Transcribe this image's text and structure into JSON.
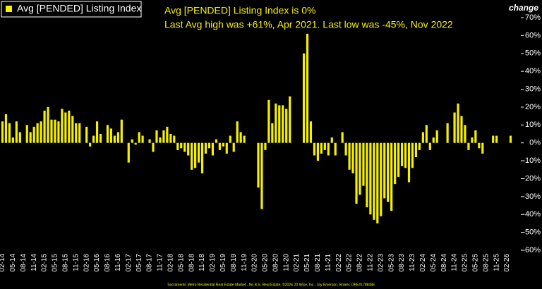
{
  "chart_data": {
    "type": "bar",
    "y_label": "change",
    "annotations": [
      "Avg [PENDED] Listing Index is 0%",
      "Last Avg high was +61%, Apr 2021. Last low was -45%, Nov 2022"
    ],
    "footer": "Sacramento Metro Residential Real Estate Market - No B.S. Real Estate, ©2026 JD Wise, Inc - Jay Emerson, Broker, DRE#1788486",
    "categories": [
      "02-14",
      null,
      null,
      "05-14",
      null,
      null,
      "08-14",
      null,
      null,
      "11-14",
      null,
      null,
      "02-15",
      null,
      null,
      "05-15",
      null,
      null,
      "08-15",
      null,
      null,
      "11-15",
      null,
      null,
      "02-16",
      null,
      null,
      "05-16",
      null,
      null,
      "08-16",
      null,
      null,
      "11-16",
      null,
      null,
      "02-17",
      null,
      null,
      "05-17",
      null,
      null,
      "08-17",
      null,
      null,
      "11-17",
      null,
      null,
      "02-18",
      null,
      null,
      "05-18",
      null,
      null,
      "08-18",
      null,
      null,
      "11-18",
      null,
      null,
      "02-19",
      null,
      null,
      "05-19",
      null,
      null,
      "08-19",
      null,
      null,
      "11-19",
      null,
      null,
      "02-20",
      null,
      null,
      "05-20",
      null,
      null,
      "08-20",
      null,
      null,
      "11-20",
      null,
      null,
      "02-21",
      null,
      null,
      "05-21",
      null,
      null,
      "08-21",
      null,
      null,
      "11-21",
      null,
      null,
      "02-22",
      null,
      null,
      "05-22",
      null,
      null,
      "08-22",
      null,
      null,
      "11-22",
      null,
      null,
      "02-23",
      null,
      null,
      "05-23",
      null,
      null,
      "08-23",
      null,
      null,
      "11-23",
      null,
      null,
      "02-24",
      null,
      null,
      "05-24",
      null,
      null,
      "08-24",
      null,
      null,
      "11-24",
      null,
      null,
      "02-25",
      null,
      null,
      "05-25",
      null,
      null,
      "08-25",
      null,
      null,
      "11-25",
      null,
      null,
      "02-26",
      null
    ],
    "series": [
      {
        "name": "Avg [PENDED] Listing Index",
        "color": "#f5f000",
        "values": [
          12,
          16,
          11,
          3,
          12,
          6,
          null,
          10,
          6,
          9,
          11,
          12,
          18,
          20,
          13,
          13,
          12,
          19,
          17,
          18,
          15,
          11,
          11,
          null,
          9,
          -2,
          4,
          12,
          5,
          null,
          10,
          8,
          4,
          6,
          13,
          null,
          -11,
          2,
          -1,
          6,
          4,
          null,
          2,
          -5,
          7,
          3,
          7,
          9,
          5,
          4,
          -4,
          -3,
          -5,
          -7,
          -15,
          -14,
          -11,
          -17,
          -6,
          -3,
          -7,
          2,
          -4,
          -2,
          -6,
          4,
          -5,
          12,
          6,
          4,
          null,
          null,
          null,
          -25,
          -37,
          -4,
          24,
          11,
          22,
          21,
          21,
          19,
          26,
          null,
          null,
          null,
          50,
          61,
          12,
          -7,
          -10,
          -6,
          -4,
          -7,
          3,
          -7,
          null,
          6,
          -7,
          -15,
          -17,
          -34,
          -29,
          -24,
          -36,
          -40,
          -43,
          -45,
          -41,
          -31,
          -33,
          -38,
          -23,
          -19,
          -13,
          -14,
          -22,
          -14,
          -8,
          -4,
          6,
          10,
          -4,
          3,
          7,
          null,
          null,
          11,
          null,
          17,
          22,
          15,
          10,
          -4,
          3,
          7,
          -3,
          -6,
          null,
          null,
          4,
          4,
          null,
          null,
          null,
          4
        ]
      }
    ],
    "ylim": [
      -60,
      70
    ],
    "yticks": [
      {
        "value": -60,
        "label": "-60%"
      },
      {
        "value": -50,
        "label": "-50%"
      },
      {
        "value": -40,
        "label": "-40%"
      },
      {
        "value": -30,
        "label": "-30%"
      },
      {
        "value": -20,
        "label": "-20%"
      },
      {
        "value": -10,
        "label": "-10%"
      },
      {
        "value": 0,
        "label": "0%"
      },
      {
        "value": 10,
        "label": "10%"
      },
      {
        "value": 20,
        "label": "20%"
      },
      {
        "value": 30,
        "label": "30%"
      },
      {
        "value": 40,
        "label": "40%"
      },
      {
        "value": 50,
        "label": "50%"
      },
      {
        "value": 60,
        "label": "60%"
      },
      {
        "value": 70,
        "label": "70%"
      }
    ],
    "legend": "top-left"
  }
}
